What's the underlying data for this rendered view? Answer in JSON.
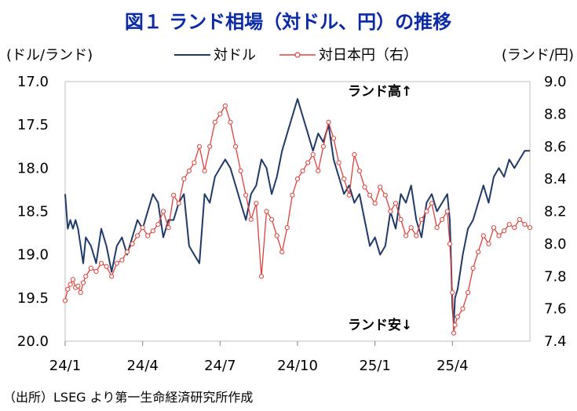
{
  "chart_data": {
    "type": "line",
    "title": "図１ ランド相場（対ドル、円）の推移",
    "left_axis_label": "(ドル/ランド)",
    "right_axis_label": "(ランド/円)",
    "left_axis": {
      "min": 17.0,
      "max": 20.0,
      "inverted": true,
      "ticks": [
        "17.0",
        "17.5",
        "18.0",
        "18.5",
        "19.0",
        "19.5",
        "20.0"
      ],
      "tick_values": [
        17.0,
        17.5,
        18.0,
        18.5,
        19.0,
        19.5,
        20.0
      ]
    },
    "right_axis": {
      "min": 7.4,
      "max": 9.0,
      "ticks": [
        "9.0",
        "8.8",
        "8.6",
        "8.4",
        "8.2",
        "8.0",
        "7.8",
        "7.6",
        "7.4"
      ],
      "tick_values": [
        9.0,
        8.8,
        8.6,
        8.4,
        8.2,
        8.0,
        7.8,
        7.6,
        7.4
      ]
    },
    "x_range": [
      0,
      18.0
    ],
    "x_ticks": [
      {
        "label": "24/1",
        "x": 0
      },
      {
        "label": "24/4",
        "x": 3
      },
      {
        "label": "24/7",
        "x": 6
      },
      {
        "label": "24/10",
        "x": 9
      },
      {
        "label": "25/1",
        "x": 12
      },
      {
        "label": "25/4",
        "x": 15
      }
    ],
    "annotations": {
      "rand_high": "ランド高↑",
      "rand_low": "ランド安↓"
    },
    "source": "（出所）LSEG より第一生命経済研究所作成",
    "series": [
      {
        "name": "対ドル",
        "axis": "left",
        "color": "#1f3a68",
        "x": [
          0,
          0.1,
          0.2,
          0.3,
          0.4,
          0.5,
          0.6,
          0.7,
          0.8,
          1.0,
          1.2,
          1.4,
          1.6,
          1.8,
          2.0,
          2.2,
          2.4,
          2.6,
          2.8,
          3.0,
          3.2,
          3.4,
          3.6,
          3.8,
          4.0,
          4.2,
          4.4,
          4.6,
          4.8,
          5.0,
          5.2,
          5.4,
          5.6,
          5.8,
          6.0,
          6.2,
          6.4,
          6.6,
          6.8,
          7.0,
          7.2,
          7.4,
          7.6,
          7.8,
          8.0,
          8.2,
          8.4,
          8.6,
          8.8,
          9.0,
          9.2,
          9.4,
          9.6,
          9.8,
          10.0,
          10.2,
          10.4,
          10.6,
          10.8,
          11.0,
          11.2,
          11.4,
          11.6,
          11.8,
          12.0,
          12.2,
          12.4,
          12.6,
          12.8,
          13.0,
          13.2,
          13.4,
          13.6,
          13.8,
          14.0,
          14.2,
          14.4,
          14.6,
          14.8,
          14.9,
          15.0,
          15.05,
          15.1,
          15.2,
          15.4,
          15.6,
          15.8,
          16.0,
          16.2,
          16.4,
          16.6,
          16.8,
          17.0,
          17.2,
          17.4,
          17.6,
          17.8,
          18.0
        ],
        "values": [
          18.3,
          18.7,
          18.6,
          18.7,
          18.6,
          18.7,
          18.9,
          19.1,
          18.8,
          18.9,
          19.1,
          18.7,
          18.9,
          19.2,
          18.9,
          18.8,
          19.0,
          18.8,
          18.6,
          18.7,
          18.5,
          18.3,
          18.4,
          18.8,
          18.6,
          18.6,
          18.4,
          18.3,
          18.9,
          19.0,
          19.1,
          18.3,
          18.4,
          18.1,
          18.0,
          17.9,
          18.0,
          18.2,
          18.4,
          18.6,
          18.3,
          18.2,
          17.9,
          18.0,
          18.3,
          18.1,
          17.8,
          17.6,
          17.4,
          17.2,
          17.4,
          17.6,
          17.8,
          17.6,
          17.7,
          17.5,
          17.9,
          18.1,
          18.3,
          18.2,
          18.4,
          18.3,
          18.6,
          18.9,
          18.8,
          19.0,
          18.9,
          18.5,
          18.7,
          18.3,
          18.4,
          18.2,
          18.6,
          18.8,
          18.4,
          18.3,
          18.5,
          18.4,
          18.3,
          18.6,
          19.6,
          19.8,
          19.5,
          19.4,
          19.0,
          18.7,
          18.6,
          18.4,
          18.2,
          18.4,
          18.1,
          18.0,
          18.1,
          17.9,
          18.0,
          17.9,
          17.8,
          17.8
        ]
      },
      {
        "name": "対日本円（右）",
        "axis": "right",
        "color": "#e0403c",
        "x": [
          0,
          0.1,
          0.2,
          0.3,
          0.4,
          0.5,
          0.6,
          0.7,
          0.8,
          1.0,
          1.2,
          1.4,
          1.6,
          1.8,
          2.0,
          2.2,
          2.4,
          2.6,
          2.8,
          3.0,
          3.2,
          3.4,
          3.6,
          3.8,
          4.0,
          4.2,
          4.4,
          4.6,
          4.8,
          5.0,
          5.2,
          5.4,
          5.6,
          5.8,
          6.0,
          6.2,
          6.4,
          6.6,
          6.8,
          7.0,
          7.2,
          7.4,
          7.6,
          7.8,
          8.0,
          8.2,
          8.4,
          8.6,
          8.8,
          9.0,
          9.2,
          9.4,
          9.6,
          9.8,
          10.0,
          10.2,
          10.4,
          10.6,
          10.8,
          11.0,
          11.2,
          11.4,
          11.6,
          11.8,
          12.0,
          12.2,
          12.4,
          12.6,
          12.8,
          13.0,
          13.2,
          13.4,
          13.6,
          13.8,
          14.0,
          14.2,
          14.4,
          14.6,
          14.8,
          14.9,
          15.0,
          15.05,
          15.1,
          15.2,
          15.4,
          15.6,
          15.8,
          16.0,
          16.2,
          16.4,
          16.6,
          16.8,
          17.0,
          17.2,
          17.4,
          17.6,
          17.8,
          18.0
        ],
        "values": [
          7.65,
          7.72,
          7.75,
          7.78,
          7.73,
          7.74,
          7.7,
          7.76,
          7.8,
          7.85,
          7.83,
          7.88,
          7.86,
          7.8,
          7.88,
          7.9,
          7.95,
          8.0,
          8.05,
          8.1,
          8.05,
          8.08,
          8.12,
          8.2,
          8.1,
          8.3,
          8.25,
          8.4,
          8.45,
          8.5,
          8.6,
          8.45,
          8.6,
          8.75,
          8.8,
          8.85,
          8.75,
          8.6,
          8.45,
          8.3,
          8.15,
          8.25,
          7.8,
          8.2,
          8.15,
          8.05,
          7.95,
          8.1,
          8.3,
          8.4,
          8.45,
          8.5,
          8.55,
          8.45,
          8.6,
          8.75,
          8.65,
          8.5,
          8.4,
          8.3,
          8.55,
          8.45,
          8.35,
          8.3,
          8.25,
          8.35,
          8.3,
          8.2,
          8.25,
          8.15,
          8.05,
          8.1,
          8.05,
          8.15,
          8.2,
          8.25,
          8.1,
          8.15,
          8.2,
          8.0,
          7.7,
          7.45,
          7.5,
          7.55,
          7.6,
          7.7,
          7.85,
          7.95,
          8.05,
          8.0,
          8.1,
          8.05,
          8.08,
          8.12,
          8.1,
          8.15,
          8.12,
          8.1
        ]
      }
    ]
  }
}
